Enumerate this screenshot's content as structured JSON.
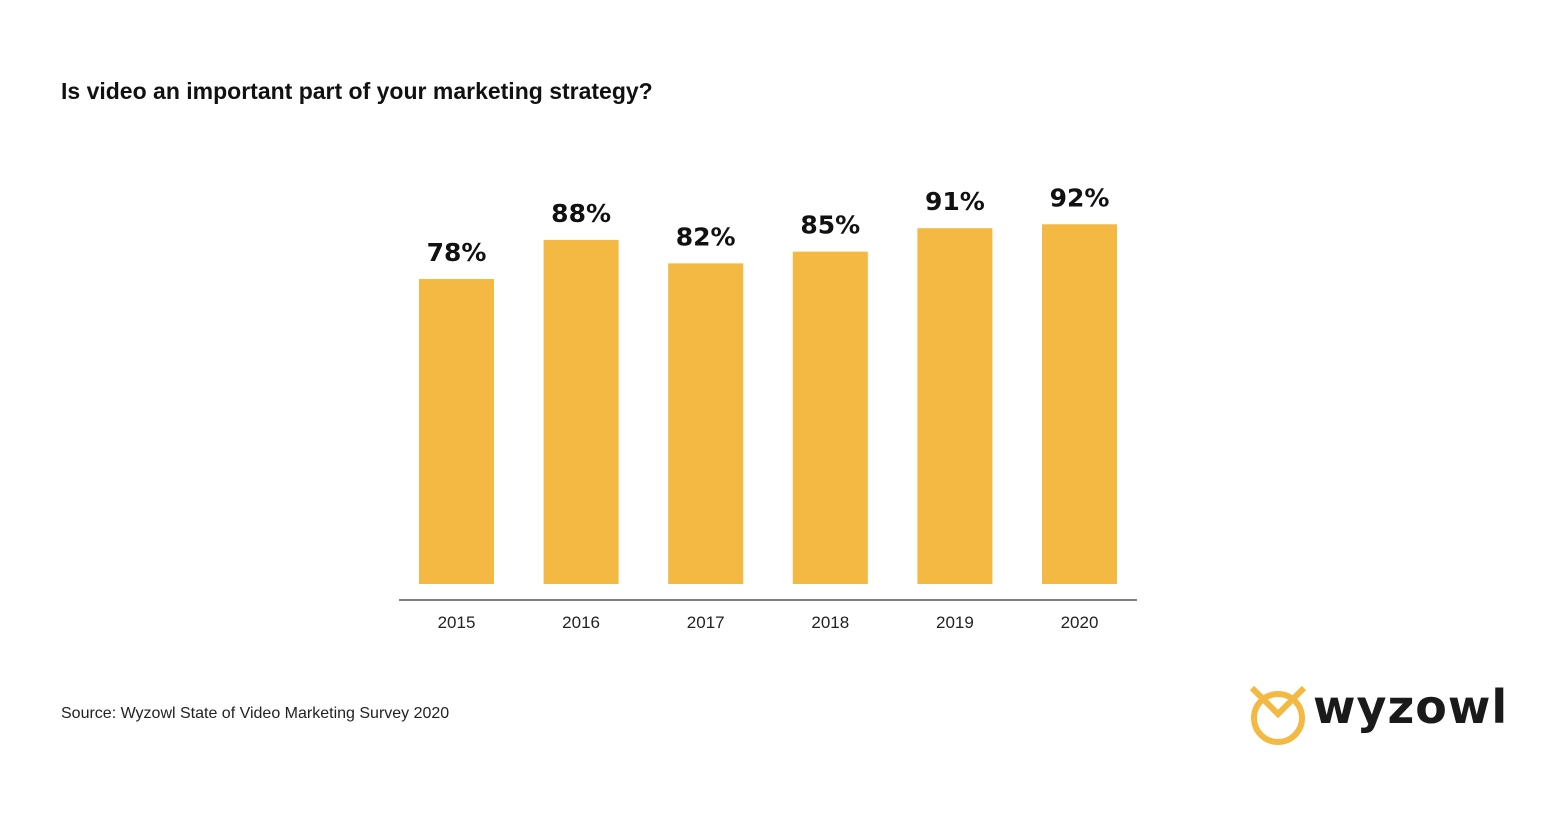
{
  "chart_data": {
    "type": "bar",
    "title": "Is video an important part of your marketing strategy?",
    "categories": [
      "2015",
      "2016",
      "2017",
      "2018",
      "2019",
      "2020"
    ],
    "values": [
      78,
      88,
      82,
      85,
      91,
      92
    ],
    "data_labels": [
      "78%",
      "88%",
      "82%",
      "85%",
      "91%",
      "92%"
    ],
    "xlabel": "",
    "ylabel": "",
    "ylim": [
      0,
      100
    ],
    "grid": false,
    "bar_color": "#F4B942"
  },
  "source": "Source: Wyzowl State of Video Marketing Survey 2020",
  "logo": {
    "text": "wyzowl",
    "color": "#F4B942"
  }
}
